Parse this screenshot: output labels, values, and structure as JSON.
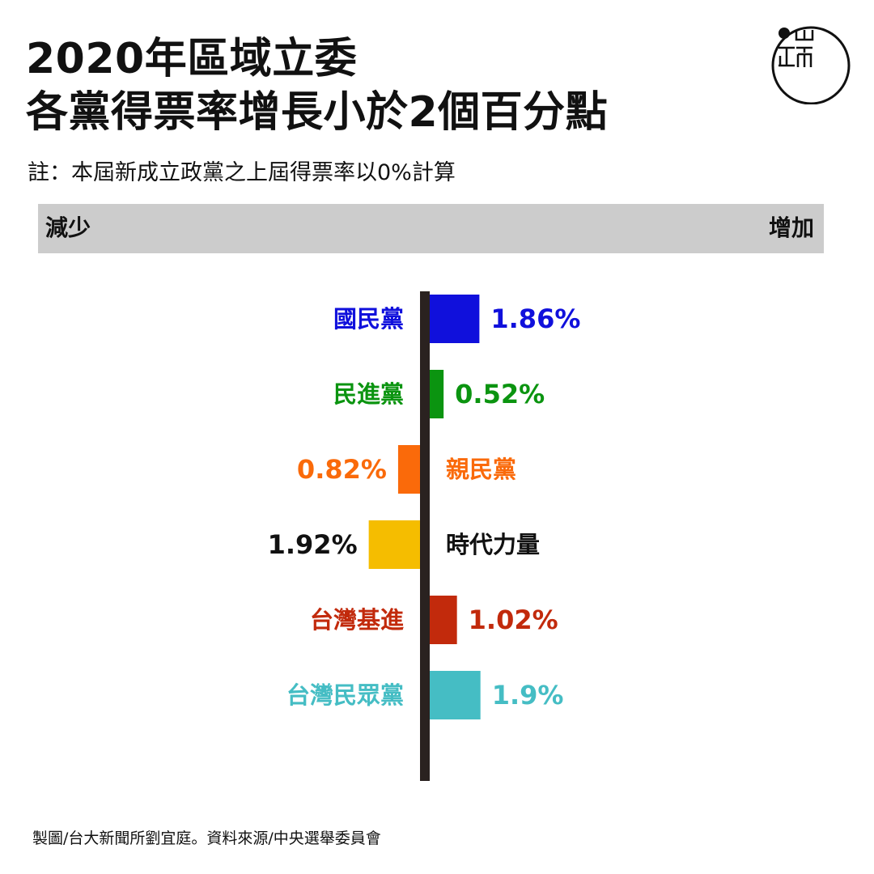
{
  "title": {
    "line1": "2020年區域立委",
    "line2": "各黨得票率增長小於2個百分點"
  },
  "note": "註：本屆新成立政黨之上屆得票率以0%計算",
  "band": {
    "left": "減少",
    "right": "增加"
  },
  "logo_icon": "initium-logo",
  "source": "製圖/台大新聞所劉宜庭。資料來源/中央選舉委員會",
  "chart_data": {
    "type": "bar",
    "orientation": "horizontal-diverging",
    "unit": "%",
    "categories": [
      "國民黨",
      "民進黨",
      "親民黨",
      "時代力量",
      "台灣基進",
      "台灣民眾黨"
    ],
    "values": [
      1.86,
      0.52,
      -0.82,
      -1.92,
      1.02,
      1.9
    ],
    "value_labels": [
      "1.86%",
      "0.52%",
      "0.82%",
      "1.92%",
      "1.02%",
      "1.9%"
    ],
    "colors": [
      "#1010dc",
      "#0b9410",
      "#fa6a0a",
      "#f5bd00",
      "#c22a0c",
      "#45bdc4"
    ],
    "axis_color": "#2a2220"
  }
}
